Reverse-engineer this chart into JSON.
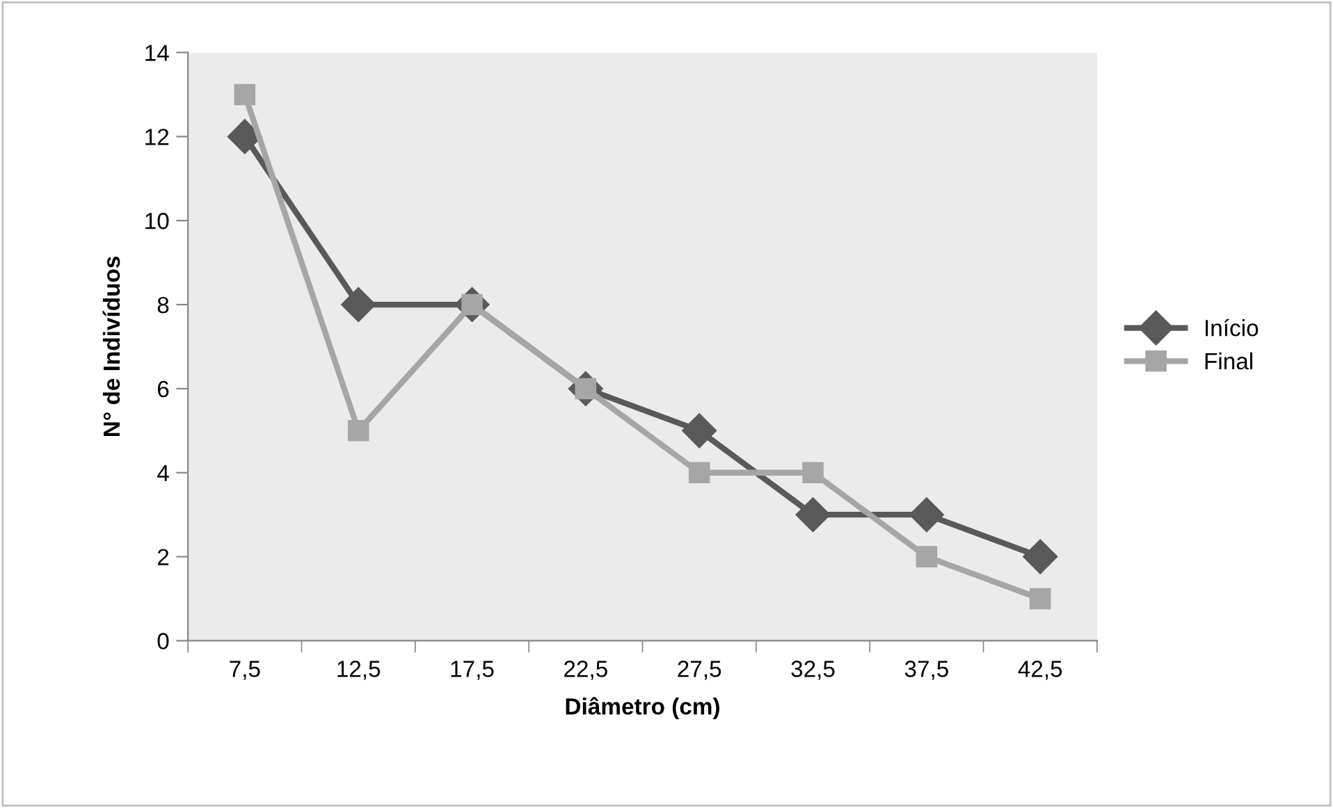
{
  "chart_data": {
    "type": "line",
    "xlabel": "Diâmetro (cm)",
    "ylabel": "N° de Indivíduos",
    "categories": [
      "7,5",
      "12,5",
      "17,5",
      "22,5",
      "27,5",
      "32,5",
      "37,5",
      "42,5"
    ],
    "series": [
      {
        "name": "Início",
        "color": "#595959",
        "marker": "diamond",
        "values": [
          12,
          8,
          8,
          6,
          5,
          3,
          3,
          2
        ]
      },
      {
        "name": "Final",
        "color": "#a6a6a6",
        "marker": "square",
        "values": [
          13,
          5,
          8,
          6,
          4,
          4,
          2,
          1
        ]
      }
    ],
    "ylim": [
      0,
      14
    ],
    "yticks": [
      0,
      2,
      4,
      6,
      8,
      10,
      12,
      14
    ],
    "grid": false,
    "legend": "right",
    "line_style": "solid"
  }
}
